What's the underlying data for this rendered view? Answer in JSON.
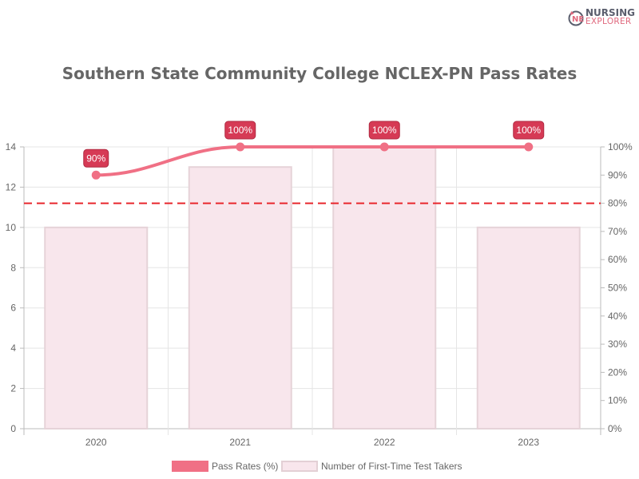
{
  "brand": {
    "line1": "NURSING",
    "line2": "EXPLORER",
    "icon": "ne-logo-icon"
  },
  "chart_data": {
    "type": "bar+line",
    "title": "Southern State Community College NCLEX-PN Pass Rates",
    "categories": [
      "2020",
      "2021",
      "2022",
      "2023"
    ],
    "series": [
      {
        "name": "Pass Rates (%)",
        "type": "line",
        "axis": "right",
        "values": [
          90,
          100,
          100,
          100
        ],
        "color": "#f07085",
        "data_labels": [
          "90%",
          "100%",
          "100%",
          "100%"
        ]
      },
      {
        "name": "Number of First-Time Test Takers",
        "type": "bar",
        "axis": "left",
        "values": [
          10,
          13,
          14,
          10
        ],
        "color": "#f8e6ec",
        "border_color": "#e6d3d8"
      }
    ],
    "reference_line": {
      "value": 80,
      "axis": "right",
      "style": "dashed",
      "color": "#e8262c"
    },
    "left_axis": {
      "min": 0,
      "max": 14,
      "ticks": [
        "0",
        "2",
        "4",
        "6",
        "8",
        "10",
        "12",
        "14"
      ]
    },
    "right_axis": {
      "min": 0,
      "max": 100,
      "ticks": [
        "0%",
        "10%",
        "20%",
        "30%",
        "40%",
        "50%",
        "60%",
        "70%",
        "80%",
        "90%",
        "100%"
      ]
    },
    "xlabel": "",
    "ylabel": "",
    "grid": true,
    "legend_position": "bottom"
  },
  "legend": {
    "items": [
      {
        "label": "Pass Rates (%)",
        "color": "#f07085"
      },
      {
        "label": "Number of First-Time Test Takers",
        "color": "#f8e6ec"
      }
    ]
  },
  "colors": {
    "line": "#f07085",
    "label_bg": "#d63a55",
    "bar_fill": "#f8e6ec",
    "bar_border": "#e3d0d5",
    "ref_line": "#e8262c",
    "grid": "#e5e5e5"
  }
}
